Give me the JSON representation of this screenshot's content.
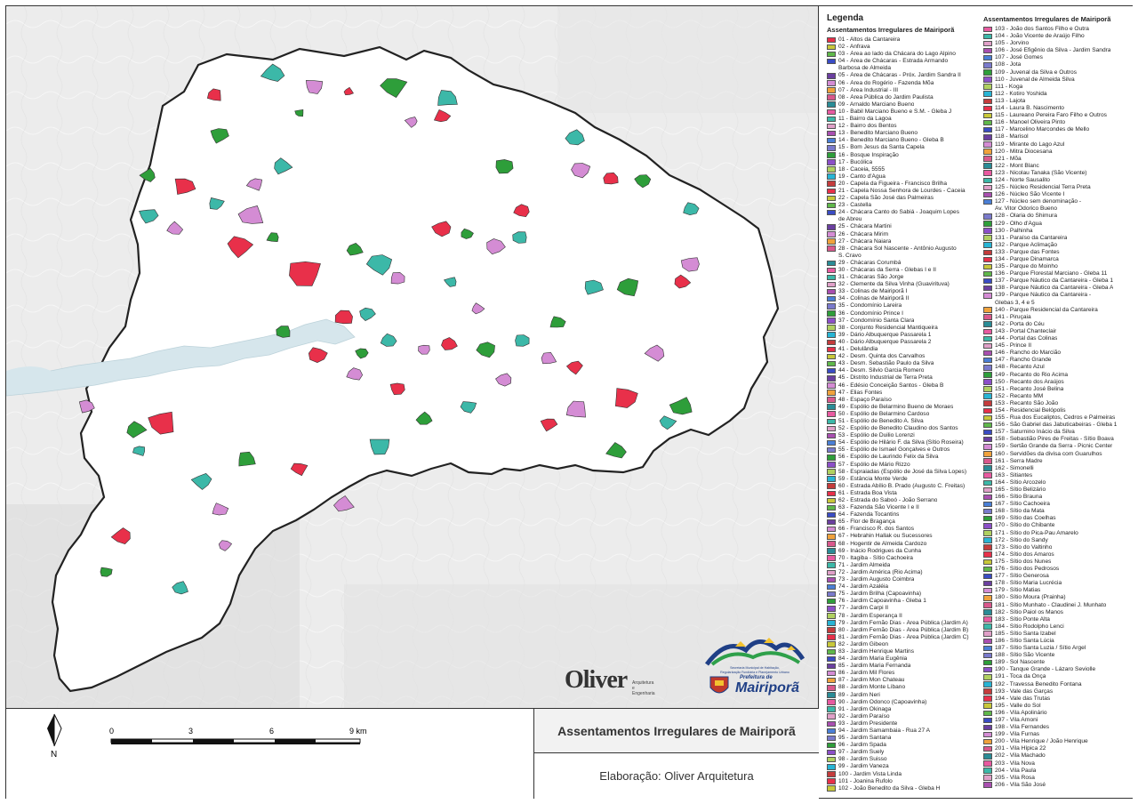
{
  "map": {
    "title": "Assentamentos Irregulares de Mairiporã",
    "credit": "Elaboração: Oliver Arquitetura",
    "north_label": "N",
    "scale": {
      "ticks": [
        "0",
        "3",
        "6",
        "9 km"
      ]
    }
  },
  "logos": {
    "oliver": {
      "name": "Oliver",
      "tagline_1": "Arquitetura e",
      "tagline_2": "Engenharia"
    },
    "prefeitura": {
      "pre": "Prefeitura de",
      "name": "Mairiporã",
      "sub_1": "Secretaria Municipal de Habitação,",
      "sub_2": "Regularização Fundiária e Planejamento Urbano"
    }
  },
  "legend": {
    "title": "Legenda",
    "left_heading": "Assentamentos Irregulares de Mairiporã",
    "right_heading": "Assentamentos Irregulares de Mairiporã",
    "left_items": [
      "01 - Altos da Cantareira",
      "02 - Anfrava",
      "03 - Área ao lado da Chácara do Lago Alpino",
      "04 - Área de Chácaras - Estrada Armando",
      "Barbosa de Almeida",
      "05 - Área de Chácaras - Próx. Jardim Sandra II",
      "06 - Área do Rogério - Fazenda Mõa",
      "07 - Área Industrial - III",
      "08 - Área Pública do Jardim Paulista",
      "09 - Arnaldo Marciano Bueno",
      "10 - Babil Marciano Bueno e S.M. - Gleba J",
      "11 - Bairro da Lagoa",
      "12 - Bairro dos Bentos",
      "13 - Benedito Marciano Bueno",
      "14 - Benedito Marciano Bueno - Gleba B",
      "15 - Bom Jesus da Santa Capela",
      "16 - Bosque Inspiração",
      "17 - Bucólica",
      "18 - Caceia, 5555",
      "19 - Canto d'Água",
      "20 - Capela da Figueira - Francisco Brilha",
      "21 - Capela Nossa Senhora de Lourdes - Caceia",
      "22 - Capela São José das Palmeiras",
      "23 - Castella",
      "24 - Chácara Canto do Sabiá - Joaquim Lopes",
      "de Abreu",
      "25 - Chácara Martini",
      "26 - Chácara Mirim",
      "27 - Chácara Naiara",
      "28 - Chácara Sol Nascente - Antônio Augusto",
      "S. Cravo",
      "29 - Chácaras Corumbá",
      "30 - Chácaras da Serra - Glebas I e II",
      "31 - Chácaras São Jorge",
      "32 - Clemente da Silva Vinha (Guavirituva)",
      "33 - Colinas de Mairiporã I",
      "34 - Colinas de Mairiporã II",
      "35 - Condomínio Lareira",
      "36 - Condomínio Prince I",
      "37 - Condomínio Santa Clara",
      "38 - Conjunto Residencial Mantiqueira",
      "39 - Dário Albuquerque Passarela 1",
      "40 - Dário Albuquerque Passarela 2",
      "41 - Delulândia",
      "42 - Desm. Quinta dos Carvalhos",
      "43 - Desm. Sebastião Paulo da Silva",
      "44 - Desm. Silvio Garcia Romero",
      "45 - Distrito Industrial de Terra Preta",
      "46 - Edésio Conceição Santos - Gleba B",
      "47 - Elias Fontes",
      "48 - Espaço Paraíso",
      "49 - Espólio de Belarmino Bueno de Moraes",
      "50 - Espólio de Belarmino Cardoso",
      "51 - Espólio de Benedito A. Silva",
      "52 - Espólio de Benedito Claudino dos Santos",
      "53 - Espólio de Duilio Lorenzi",
      "54 - Espólio de Hilário F. da Silva (Sítio Roseira)",
      "55 - Espólio de Ismael Gonçalves e Outros",
      "56 - Espólio de Laurindo Felix da Silva",
      "57 - Espólio de Mário Rizzo",
      "58 - Espraiadas (Espólio de José da Silva Lopes)",
      "59 - Estância Monte Verde",
      "60 - Estrada Abílio B. Prado (Augusto C. Freitas)",
      "61 - Estrada Boa Vista",
      "62 - Estrada do Saboó - João Serrano",
      "63 - Fazenda São Vicente I e II",
      "64 - Fazenda Tocantins",
      "65 - Flor de Bragança",
      "66 - Francisco R. dos Santos",
      "67 - Hebrahin Hallak ou Sucessores",
      "68 - Hogentir de Almeida Cardozo",
      "69 - Inácio Rodrigues da Cunha",
      "70 - Itagiba - Sítio Cachoeira",
      "71 - Jardim Almeida",
      "72 - Jardim América (Rio Acima)",
      "73 - Jardim Augusto Coimbra",
      "74 - Jardim Azaléia",
      "75 - Jardim Brilha (Capoavinha)",
      "76 - Jardim Capoavinha - Gleba 1",
      "77 - Jardim Carpi II",
      "78 - Jardim Esperança II",
      "79 - Jardim Fernão Dias - Área Pública (Jardim A)",
      "80 - Jardim Fernão Dias - Área Pública (Jardim B)",
      "81 - Jardim Fernão Dias - Área Pública (Jardim C)",
      "82 - Jardim Gibeon",
      "83 - Jardim Henrique Martins",
      "84 - Jardim Maria Eugênia",
      "85 - Jardim Maria Fernanda",
      "86 - Jardim Mil Flores",
      "87 - Jardim Mon Chateau",
      "88 - Jardim Monte Líbano",
      "89 - Jardim Neri",
      "90 - Jardim Odonco (Capoavinha)",
      "91 - Jardim Okinaga",
      "92 - Jardim Paraíso",
      "93 - Jardim Presidente",
      "94 - Jardim Samambaia - Rua 27 A",
      "95 - Jardim Santana",
      "96 - Jardim Spada",
      "97 - Jardim Suely",
      "98 - Jardim Suisso",
      "99 - Jardim Vaneza",
      "100 - Jardim Vista Linda",
      "101 - Joanina Rufolo",
      "102 - João Benedito da Silva - Gleba H"
    ],
    "right_items": [
      "103 - João dos Santos Filho e Outra",
      "104 - João Vicente de Araújo Filho",
      "105 - Jorvino",
      "106 - José Efigênio da Silva - Jardim Sandra",
      "107 - José Gomes",
      "108 - Jota",
      "109 - Juvenal da Silva e Outros",
      "110 - Juvenal de Almeida Silva",
      "111 - Koga",
      "112 - Kotiro Yoshida",
      "113 - Lajota",
      "114 - Laura B. Nascimento",
      "115 - Laureano Pereira Faro Filho e Outros",
      "116 - Manoel Oliveira Pinto",
      "117 - Marcelino Marcondes de Mello",
      "118 - Marisol",
      "119 - Mirante do Lago Azul",
      "120 - Mitra Diocesana",
      "121 - Mõa",
      "122 - Mont Blanc",
      "123 - Nicolau Tanaka (São Vicente)",
      "124 - Norte Sausalito",
      "125 - Núcleo Residencial Terra Preta",
      "126 - Núcleo São Vicente I",
      "127 - Núcleo sem denominação -",
      "Av. Vitor Odorico Bueno",
      "128 - Olaria do Shimura",
      "129 - Olho d'Água",
      "130 - Palhinha",
      "131 - Paraíso da Cantareira",
      "132 - Parque Aclimação",
      "133 - Parque das Fontes",
      "134 - Parque Dinamarca",
      "135 - Parque do Moinho",
      "136 - Parque Florestal Marciano - Gleba 11",
      "137 - Parque Náutico da Cantareira - Gleba 1",
      "138 - Parque Náutico da Cantareira - Gleba A",
      "139 - Parque Náutico da Cantareira -",
      "Glebas 3, 4 e 5",
      "140 - Parque Residencial da Cantareira",
      "141 - Piruçaia",
      "142 - Porta do Céu",
      "143 - Portal Chanteclair",
      "144 - Portal das Colinas",
      "145 - Prince II",
      "146 - Rancho do Marcião",
      "147 - Rancho Grande",
      "148 - Recanto Azul",
      "149 - Recanto do Rio Acima",
      "150 - Recanto dos Araújos",
      "151 - Recanto José Belina",
      "152 - Recanto MM",
      "153 - Recanto São João",
      "154 - Residencial Belópolis",
      "155 - Rua dos Eucaliptos, Cedros e Palmeiras",
      "156 - São Gabriel das Jabuticabeiras - Gleba 1",
      "157 - Saturnino Inácio da Silva",
      "158 - Sebastião Pires de Freitas - Sítio Boava",
      "159 - Sertão Grande da Serra - Picnic Center",
      "160 - Servidões da divisa com Guarulhos",
      "161 - Serra Madre",
      "162 - Simonelli",
      "163 - Sitiantes",
      "164 - Sítio Arcozelo",
      "165 - Sítio Belizário",
      "166 - Sítio Brauna",
      "167 - Sítio Cachoeira",
      "168 - Sítio da Mata",
      "169 - Sítio das Coelhas",
      "170 - Sítio do Chibante",
      "171 - Sítio do Pica-Pau Amarelo",
      "172 - Sítio do Sandy",
      "173 - Sítio do Valtinho",
      "174 - Sítio dos Amaros",
      "175 - Sítio dos Nunes",
      "176 - Sítio dos Pedrosos",
      "177 - Sítio Generosa",
      "178 - Sítio Maria Lucrécia",
      "179 - Sítio Matias",
      "180 - Sítio Moura (Prainha)",
      "181 - Sítio Munhato - Claudinei J. Munhato",
      "182 - Sítio Paiol os Manos",
      "183 - Sítio Ponte Alta",
      "184 - Sítio Rodolpho Lenci",
      "185 - Sítio Santa Izabel",
      "186 - Sítio Santa Lúcia",
      "187 - Sítio Santa Luzia / Sítio Argel",
      "188 - Sítio São Vicente",
      "189 - Sol Nascente",
      "190 - Tanque Grande - Lázaro Seviolle",
      "191 - Toca da Onça",
      "192 - Travessa Benedito Fontana",
      "193 - Vale das Garças",
      "194 - Vale das Trutas",
      "195 - Valle do Sol",
      "196 - Vila Apolinário",
      "197 - Vila Arnoni",
      "198 - Vila Fernandes",
      "199 - Vila Furnas",
      "200 - Vila Henrique / João Henrique",
      "201 - Vila Hípica 22",
      "202 - Vila Machado",
      "203 - Vila Nova",
      "204 - Vila Paula",
      "205 - Vila Rosa",
      "206 - Vila São José"
    ],
    "palette": [
      "#e8304a",
      "#3a4cc4",
      "#f0a23c",
      "#e85aa0",
      "#a94fb0",
      "#2e9e3a",
      "#28b4d4",
      "#c8c83a",
      "#6b3fa0",
      "#d9588c",
      "#3cb8a8",
      "#4a7fd6",
      "#8c4fc8",
      "#c43c3c",
      "#5fb84a",
      "#d48cd4",
      "#2a8c96",
      "#e0a0c8",
      "#7a7acc",
      "#b0d060"
    ]
  }
}
